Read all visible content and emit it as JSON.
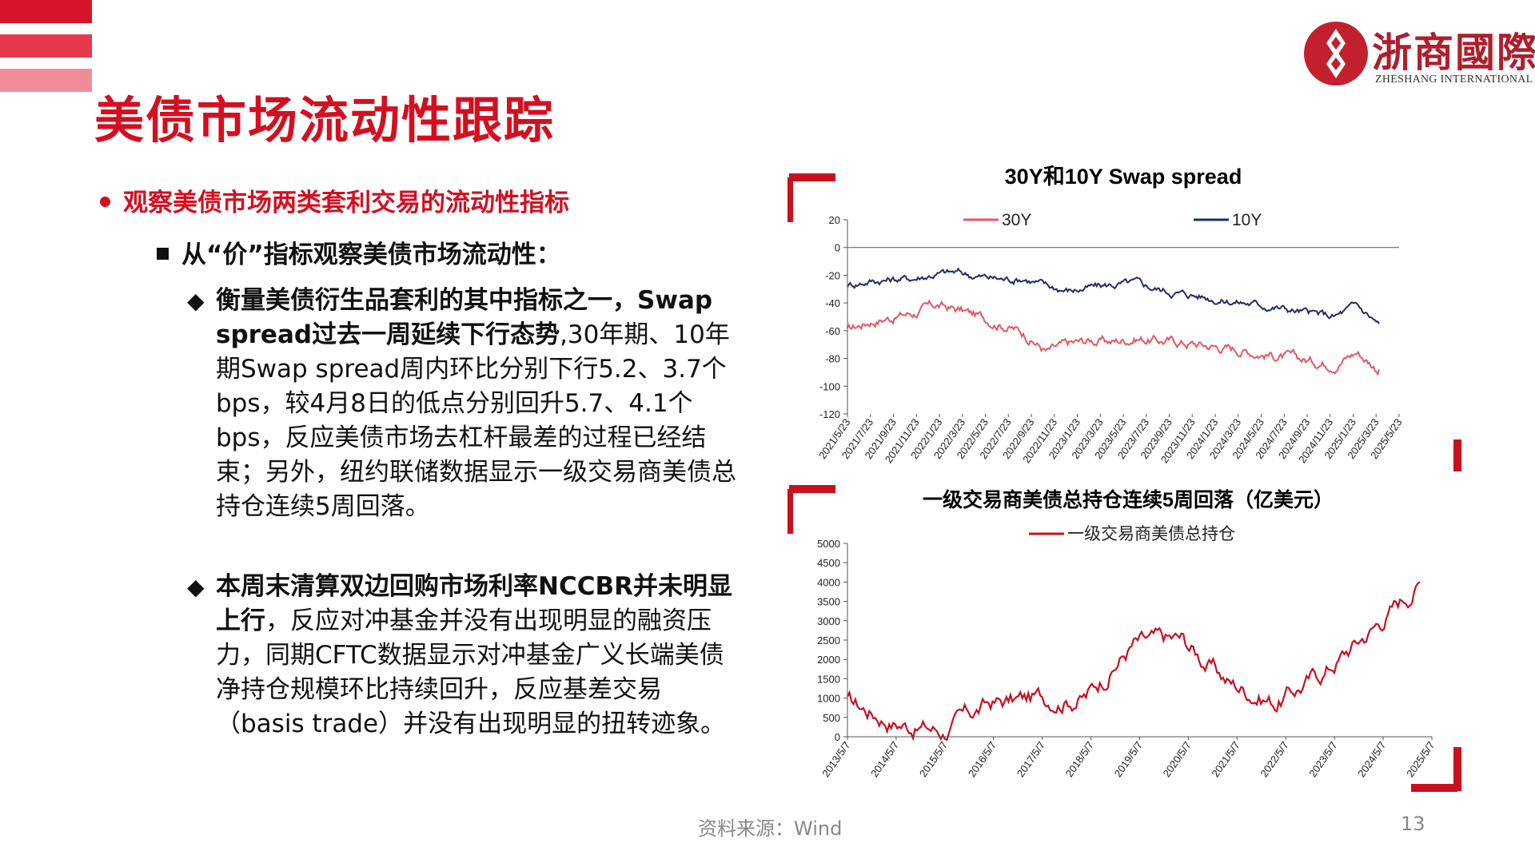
{
  "header": {
    "title": "美债市场流动性跟踪",
    "logo_text": "浙商國際",
    "logo_subtitle": "ZHESHANG INTERNATIONAL"
  },
  "content": {
    "bullet1": "观察美债市场两类套利交易的流动性指标",
    "bullet2": "从“价”指标观察美债市场流动性：",
    "para1_bold": "衡量美债衍生品套利的其中指标之一，Swap spread过去一周延续下行态势",
    "para1_text": ",30年期、10年期Swap spread周内环比分别下行5.2、3.7个bps，较4月8日的低点分别回升5.7、4.1个bps，反应美债市场去杠杆最差的过程已经结束；另外，纽约联储数据显示一级交易商美债总持仓连续5周回落。",
    "para2_bold": "本周末清算双边回购市场利率NCCBR并未明显上行",
    "para2_text": "，反应对冲基金并没有出现明显的融资压力，同期CFTC数据显示对冲基金广义长端美债净持仓规模环比持续回升，反应基差交易（basis trade）并没有出现明显的扭转迹象。"
  },
  "footer": {
    "source": "资料来源：Wind",
    "page_number": "13"
  },
  "colors": {
    "accent": "#d40f20",
    "series_30y": "#e05a64",
    "series_10y": "#1f2d6b",
    "series_dealer": "#c8101f"
  },
  "chart_data": [
    {
      "type": "line",
      "title": "30Y和10Y Swap spread",
      "x": [
        "2021/5/23",
        "2021/7/23",
        "2021/9/23",
        "2021/11/23",
        "2022/1/23",
        "2022/3/23",
        "2022/5/23",
        "2022/7/23",
        "2022/9/23",
        "2022/11/23",
        "2023/1/23",
        "2023/3/23",
        "2023/5/23",
        "2023/7/23",
        "2023/9/23",
        "2023/11/23",
        "2024/1/23",
        "2024/3/23",
        "2024/5/23",
        "2024/7/23",
        "2024/9/23",
        "2024/11/23",
        "2025/1/23",
        "2025/3/23",
        "2025/5/23"
      ],
      "series": [
        {
          "name": "30Y",
          "values": [
            -60,
            -53,
            -50,
            -47,
            -42,
            -45,
            -50,
            -55,
            -62,
            -75,
            -70,
            -67,
            -68,
            -65,
            -67,
            -68,
            -70,
            -72,
            -74,
            -77,
            -80,
            -82,
            -83,
            -75,
            -88
          ]
        },
        {
          "name": "10Y",
          "values": [
            -27,
            -24,
            -23,
            -22,
            -19,
            -18,
            -21,
            -23,
            -22,
            -28,
            -31,
            -29,
            -27,
            -26,
            -30,
            -33,
            -35,
            -38,
            -40,
            -42,
            -45,
            -48,
            -50,
            -42,
            -55
          ]
        }
      ],
      "yticks": [
        20,
        0,
        -20,
        -40,
        -60,
        -80,
        -100,
        -120
      ],
      "ylim": [
        -120,
        20
      ],
      "legend": "top"
    },
    {
      "type": "line",
      "title": "一级交易商美债总持仓连续5周回落（亿美元）",
      "x": [
        "2013/5/7",
        "2014/5/7",
        "2015/5/7",
        "2016/5/7",
        "2017/5/7",
        "2018/5/7",
        "2019/5/7",
        "2020/5/7",
        "2021/5/7",
        "2022/5/7",
        "2023/5/7",
        "2024/5/7",
        "2025/5/7"
      ],
      "series": [
        {
          "name": "一级交易商美债总持仓",
          "values": [
            900,
            400,
            150,
            850,
            1000,
            1050,
            2400,
            2500,
            1400,
            900,
            1700,
            2800,
            4000
          ]
        }
      ],
      "yticks": [
        5000,
        4500,
        4000,
        3500,
        3000,
        2500,
        2000,
        1500,
        1000,
        500,
        0
      ],
      "ylim": [
        0,
        5000
      ],
      "legend": "top"
    }
  ]
}
